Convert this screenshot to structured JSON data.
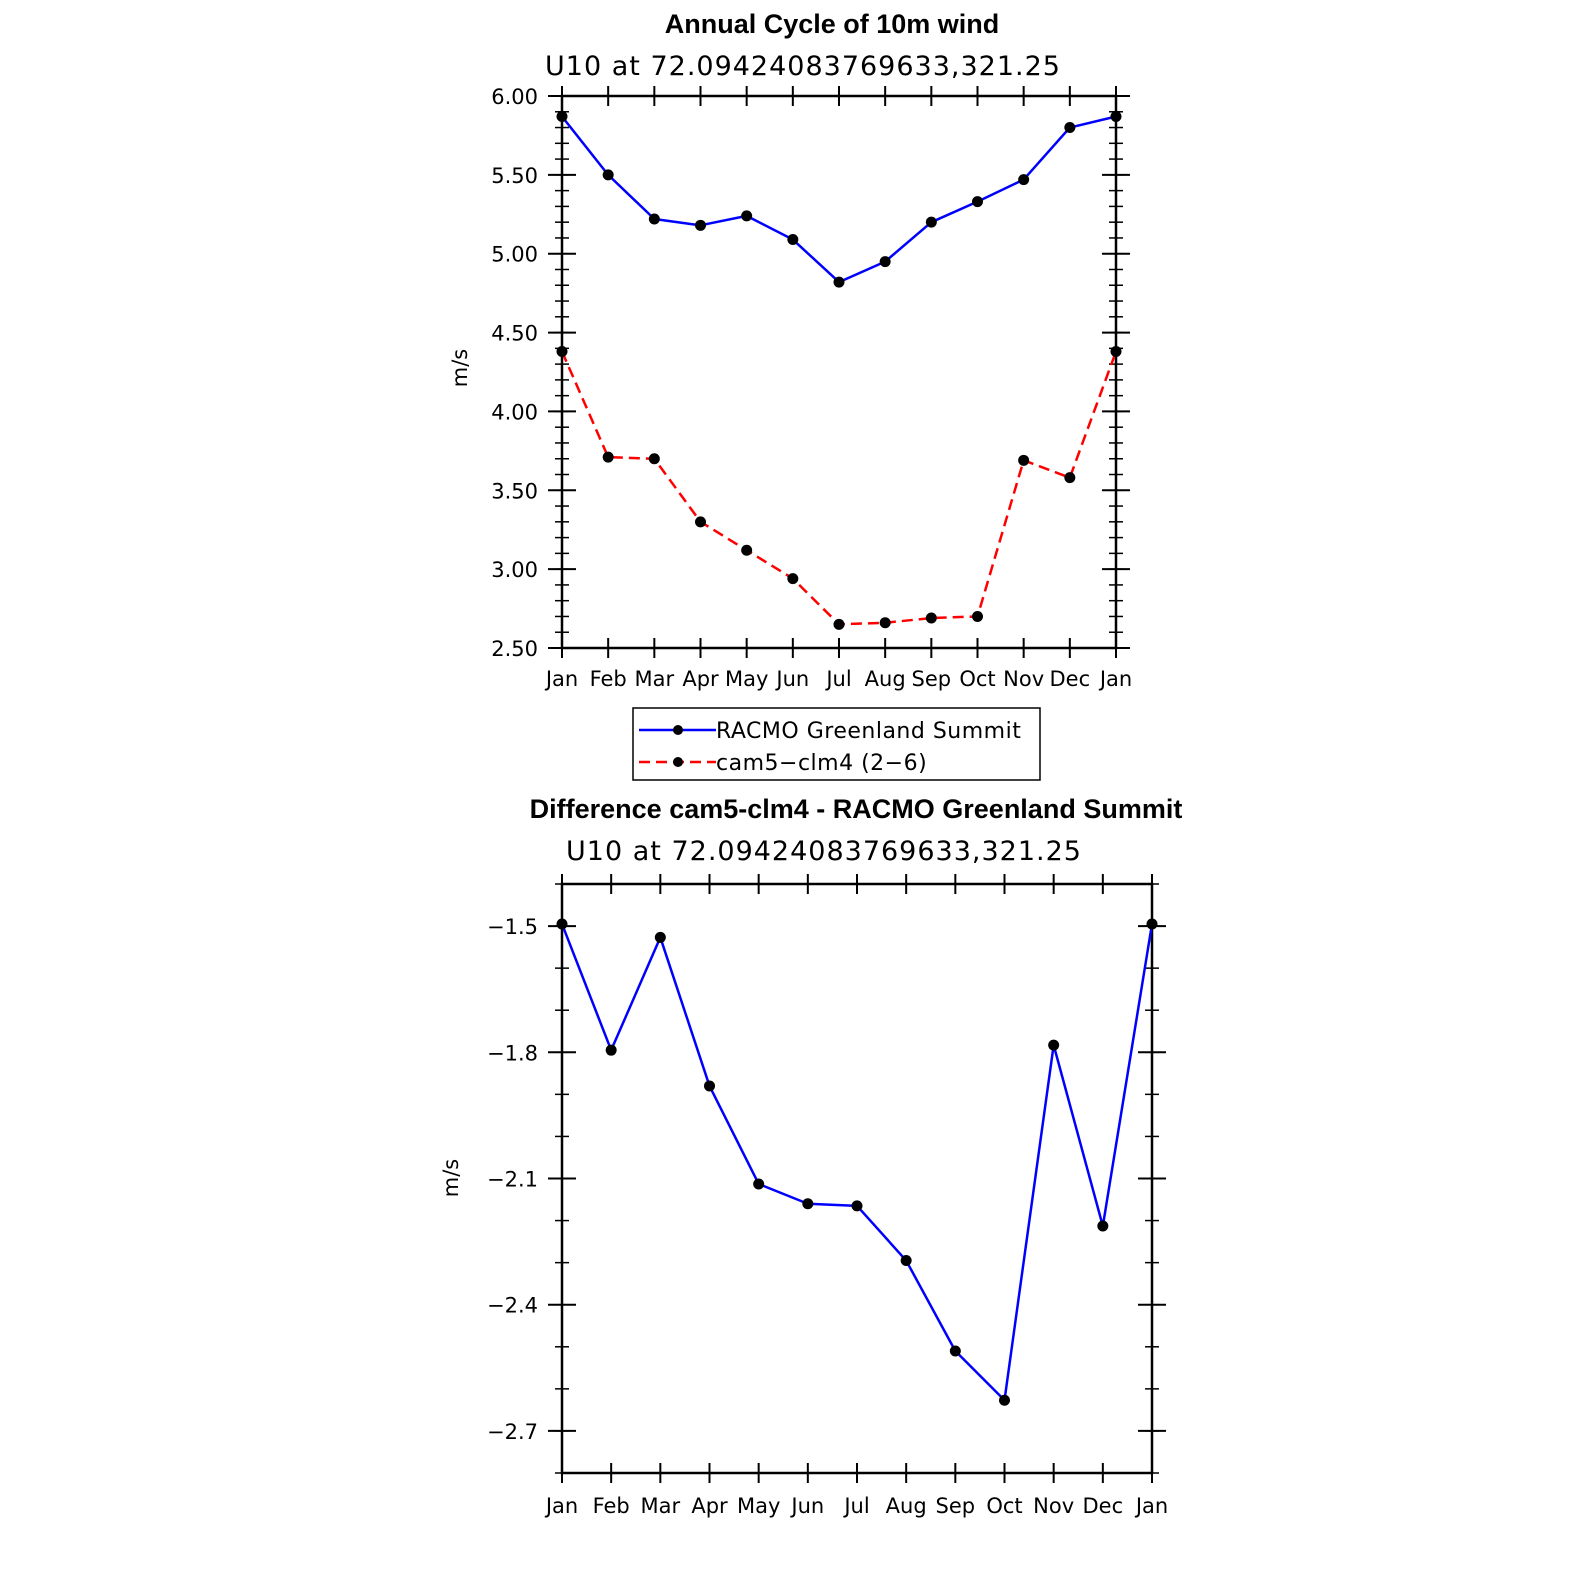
{
  "chart_data": [
    {
      "type": "line",
      "title": "Annual Cycle of 10m wind",
      "subtitle": "U10  at  72.09424083769633,321.25",
      "xlabel": "",
      "ylabel": "m/s",
      "categories": [
        "Jan",
        "Feb",
        "Mar",
        "Apr",
        "May",
        "Jun",
        "Jul",
        "Aug",
        "Sep",
        "Oct",
        "Nov",
        "Dec",
        "Jan"
      ],
      "yticks": [
        "6.00",
        "5.50",
        "5.00",
        "4.50",
        "4.00",
        "3.50",
        "3.00",
        "2.50"
      ],
      "ylim": [
        2.5,
        6.0
      ],
      "grid": false,
      "legend_position": "bottom",
      "series": [
        {
          "name": "RACMO Greenland Summit",
          "color": "#0000ff",
          "dash": "solid",
          "values": [
            5.87,
            5.5,
            5.22,
            5.18,
            5.24,
            5.09,
            4.82,
            4.95,
            5.2,
            5.33,
            5.47,
            5.8,
            5.87
          ]
        },
        {
          "name": "cam5−clm4 (2−6)",
          "color": "#ff0000",
          "dash": "dashed",
          "values": [
            4.38,
            3.71,
            3.7,
            3.3,
            3.12,
            2.94,
            2.65,
            2.66,
            2.69,
            2.7,
            3.69,
            3.58,
            4.38
          ]
        }
      ]
    },
    {
      "type": "line",
      "title": "Difference cam5-clm4 - RACMO Greenland Summit",
      "subtitle": "U10  at  72.09424083769633,321.25",
      "xlabel": "",
      "ylabel": "m/s",
      "categories": [
        "Jan",
        "Feb",
        "Mar",
        "Apr",
        "May",
        "Jun",
        "Jul",
        "Aug",
        "Sep",
        "Oct",
        "Nov",
        "Dec",
        "Jan"
      ],
      "yticks": [
        "−1.5",
        "−1.8",
        "−2.1",
        "−2.4",
        "−2.7"
      ],
      "ytick_values": [
        -1.5,
        -1.8,
        -2.1,
        -2.4,
        -2.7
      ],
      "ylim": [
        -2.8,
        -1.4
      ],
      "grid": false,
      "series": [
        {
          "color": "#0000ff",
          "dash": "solid",
          "values": [
            -1.495,
            -1.795,
            -1.527,
            -1.88,
            -2.113,
            -2.16,
            -2.165,
            -2.295,
            -2.51,
            -2.627,
            -1.783,
            -2.213,
            -1.495
          ]
        }
      ]
    }
  ]
}
